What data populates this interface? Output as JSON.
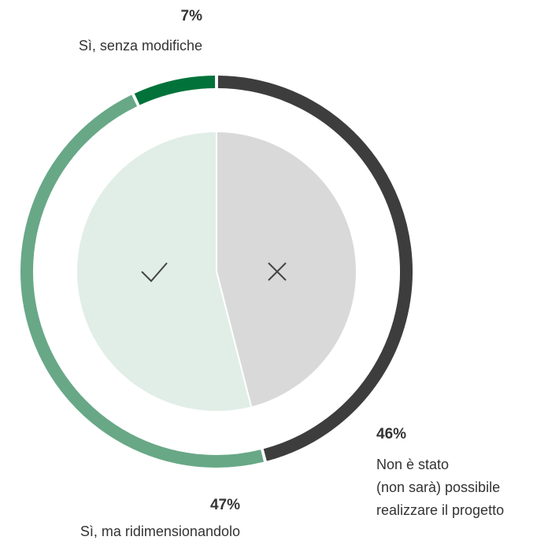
{
  "chart_data": {
    "type": "donut",
    "categories": [
      "Non è stato\n(non sarà) possibile\nrealizzare il progetto",
      "Sì, ma ridimensionandolo",
      "Sì, senza modifiche"
    ],
    "values": [
      46,
      47,
      7
    ],
    "value_labels": [
      "46%",
      "47%",
      "7%"
    ],
    "colors": [
      "#3d3d3d",
      "#68a886",
      "#00723a"
    ],
    "inner_colors": [
      "#d9d9d9",
      "#e1eee7",
      "#e1eee7"
    ]
  }
}
